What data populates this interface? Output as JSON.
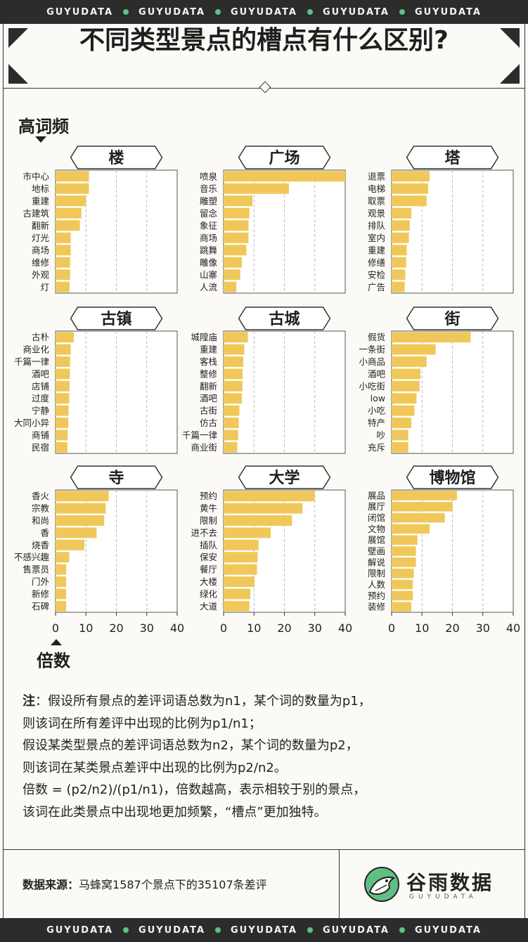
{
  "band_text": [
    "GUYUDATA",
    "GUYUDATA",
    "GUYUDATA",
    "GUYUDATA",
    "GUYUDATA"
  ],
  "title": "不同类型景点的槽点有什么区别?",
  "y_axis_label": "高词频",
  "x_axis_label": "倍数",
  "colors": {
    "bar": "#f0c85a",
    "accent": "#5fbf85",
    "band": "#2c2c2c",
    "grid": "#bbbbbb"
  },
  "note_lines": [
    {
      "label": "注",
      "text": "：假设所有景点的差评词语总数为n1，某个词的数量为p1，"
    },
    {
      "label": "",
      "text": "则该词在所有差评中出现的比例为p1/n1；"
    },
    {
      "label": "",
      "text": "假设某类型景点的差评词语总数为n2，某个词的数量为p2，"
    },
    {
      "label": "",
      "text": "则该词在某类景点差评中出现的比例为p2/n2。"
    },
    {
      "label": "",
      "text": "倍数 = (p2/n2)/(p1/n1)，倍数越高，表示相较于别的景点，"
    },
    {
      "label": "",
      "text": "该词在此类景点中出现地更加频繁，“槽点”更加独特。"
    }
  ],
  "source": {
    "label": "数据来源：",
    "text": "马蜂窝1587个景点下的35107条差评"
  },
  "logo": {
    "name": "谷雨数据",
    "sub": "GUYUDATA",
    "icon": "bird-logo-icon"
  },
  "chart_data": [
    {
      "type": "bar",
      "orientation": "horizontal",
      "title": "楼",
      "xlim": [
        0,
        40
      ],
      "xticks": [
        0,
        10,
        20,
        30,
        40
      ],
      "categories": [
        "市中心",
        "地标",
        "重建",
        "古建筑",
        "翻新",
        "灯光",
        "商场",
        "维修",
        "外观",
        "灯"
      ],
      "values": [
        11,
        11,
        10,
        8.5,
        8,
        5,
        5,
        4.8,
        4.8,
        4.6
      ]
    },
    {
      "type": "bar",
      "orientation": "horizontal",
      "title": "广场",
      "xlim": [
        0,
        40
      ],
      "xticks": [
        0,
        10,
        20,
        30,
        40
      ],
      "categories": [
        "喷泉",
        "音乐",
        "雕塑",
        "留念",
        "象征",
        "商场",
        "跳舞",
        "雕像",
        "山寨",
        "人流"
      ],
      "values": [
        40,
        21.5,
        9.5,
        8.5,
        8.2,
        8.2,
        7.5,
        6,
        5.5,
        4.2
      ]
    },
    {
      "type": "bar",
      "orientation": "horizontal",
      "title": "塔",
      "xlim": [
        0,
        40
      ],
      "xticks": [
        0,
        10,
        20,
        30,
        40
      ],
      "categories": [
        "退票",
        "电梯",
        "取票",
        "观景",
        "排队",
        "室内",
        "重建",
        "修缮",
        "安检",
        "广告"
      ],
      "values": [
        12.5,
        12,
        11.5,
        6.5,
        6,
        5.7,
        5,
        4.8,
        4.5,
        4.3
      ]
    },
    {
      "type": "bar",
      "orientation": "horizontal",
      "title": "古镇",
      "xlim": [
        0,
        40
      ],
      "xticks": [
        0,
        10,
        20,
        30,
        40
      ],
      "categories": [
        "古朴",
        "商业化",
        "千篇一律",
        "酒吧",
        "店铺",
        "过度",
        "宁静",
        "大同小异",
        "商铺",
        "民宿"
      ],
      "values": [
        6,
        5,
        4.8,
        4.7,
        4.6,
        4.5,
        4.3,
        4.2,
        4,
        3.9
      ]
    },
    {
      "type": "bar",
      "orientation": "horizontal",
      "title": "古城",
      "xlim": [
        0,
        40
      ],
      "xticks": [
        0,
        10,
        20,
        30,
        40
      ],
      "categories": [
        "城隍庙",
        "重建",
        "客栈",
        "整修",
        "翻新",
        "酒吧",
        "古街",
        "仿古",
        "千篇一律",
        "商业街"
      ],
      "values": [
        8,
        6.8,
        6.5,
        6.3,
        6.2,
        6,
        5.2,
        5,
        4.8,
        4.5
      ]
    },
    {
      "type": "bar",
      "orientation": "horizontal",
      "title": "街",
      "xlim": [
        0,
        40
      ],
      "xticks": [
        0,
        10,
        20,
        30,
        40
      ],
      "categories": [
        "假货",
        "一条街",
        "小商品",
        "酒吧",
        "小吃街",
        "low",
        "小吃",
        "特产",
        "吵",
        "充斥"
      ],
      "values": [
        26,
        14.5,
        11.5,
        9.5,
        9.2,
        8.2,
        7.5,
        6.5,
        5.5,
        5.5
      ]
    },
    {
      "type": "bar",
      "orientation": "horizontal",
      "title": "寺",
      "xlim": [
        0,
        40
      ],
      "xticks": [
        0,
        10,
        20,
        30,
        40
      ],
      "categories": [
        "香火",
        "宗教",
        "和尚",
        "香",
        "烧香",
        "不感兴趣",
        "售票员",
        "门外",
        "新修",
        "石碑"
      ],
      "values": [
        17.5,
        16.5,
        16,
        13.5,
        9.5,
        4.5,
        3.5,
        3.5,
        3.5,
        3.5
      ]
    },
    {
      "type": "bar",
      "orientation": "horizontal",
      "title": "大学",
      "xlim": [
        0,
        40
      ],
      "xticks": [
        0,
        10,
        20,
        30,
        40
      ],
      "categories": [
        "预约",
        "黄牛",
        "限制",
        "进不去",
        "插队",
        "保安",
        "餐厅",
        "大楼",
        "绿化",
        "大道"
      ],
      "values": [
        30,
        26,
        22.5,
        15.5,
        11.5,
        11.2,
        11,
        10.2,
        8.8,
        8.5
      ]
    },
    {
      "type": "bar",
      "orientation": "horizontal",
      "title": "博物馆",
      "xlim": [
        0,
        40
      ],
      "xticks": [
        0,
        10,
        20,
        30,
        40
      ],
      "categories": [
        "展品",
        "展厅",
        "闭馆",
        "文物",
        "展馆",
        "壁画",
        "解说",
        "限制",
        "人数",
        "预约",
        "装修"
      ],
      "values": [
        21.5,
        20,
        17.5,
        12.5,
        8.5,
        8,
        8,
        7.3,
        7,
        7,
        6.5
      ]
    }
  ]
}
